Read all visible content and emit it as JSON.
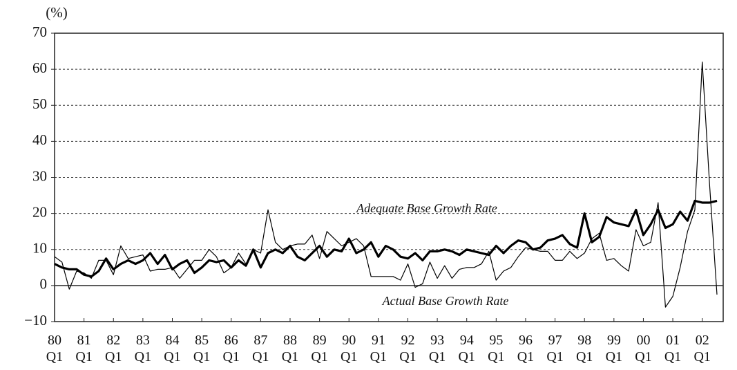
{
  "chart_data": {
    "type": "line",
    "unit_label": "(%)",
    "annotations": [
      "Adequate Base Growth Rate",
      "Actual Base Growth Rate"
    ],
    "categories": [
      "80 Q1",
      null,
      null,
      null,
      "81 Q1",
      null,
      null,
      null,
      "82 Q1",
      null,
      null,
      null,
      "83 Q1",
      null,
      null,
      null,
      "84 Q1",
      null,
      null,
      null,
      "85 Q1",
      null,
      null,
      null,
      "86 Q1",
      null,
      null,
      null,
      "87 Q1",
      null,
      null,
      null,
      "88 Q1",
      null,
      null,
      null,
      "89 Q1",
      null,
      null,
      null,
      "90 Q1",
      null,
      null,
      null,
      "91 Q1",
      null,
      null,
      null,
      "92 Q1",
      null,
      null,
      null,
      "93 Q1",
      null,
      null,
      null,
      "94 Q1",
      null,
      null,
      null,
      "95 Q1",
      null,
      null,
      null,
      "96 Q1",
      null,
      null,
      null,
      "97 Q1",
      null,
      null,
      null,
      "98 Q1",
      null,
      null,
      null,
      "99 Q1",
      null,
      null,
      null,
      "00 Q1",
      null,
      null,
      null,
      "01 Q1",
      null,
      null,
      null,
      "02 Q1",
      null,
      null
    ],
    "series": [
      {
        "name": "Adequate Base Growth Rate",
        "color": "#000000",
        "values": [
          6,
          5,
          4.5,
          4.5,
          3,
          2.5,
          4,
          7.5,
          4.5,
          6,
          7,
          6,
          7,
          9,
          6,
          8.5,
          4.5,
          6,
          7,
          3.5,
          5,
          7,
          6.5,
          7,
          5,
          7,
          5.5,
          10,
          5,
          9,
          10,
          9,
          11,
          8,
          7,
          9,
          11,
          8,
          10,
          9.5,
          13,
          9,
          10,
          12,
          8,
          11,
          10,
          8,
          7.5,
          9,
          7,
          9.5,
          9.5,
          10,
          9.5,
          8.5,
          10,
          9.5,
          9,
          8.5,
          11,
          9,
          11,
          12.5,
          12,
          10,
          10.5,
          12.5,
          13,
          14,
          11.5,
          10.5,
          20,
          12,
          13.5,
          19,
          17.5,
          17,
          16.5,
          21,
          14,
          17,
          21,
          16,
          17,
          20.5,
          18,
          23.5,
          23,
          23,
          23.5
        ]
      },
      {
        "name": "Actual Base Growth Rate",
        "color": "#000000",
        "values": [
          8,
          6.5,
          -1,
          4,
          3.5,
          2,
          7,
          7,
          3,
          11,
          7.5,
          8,
          8.5,
          4,
          4.5,
          4.5,
          5,
          2,
          4.5,
          7,
          7,
          10,
          8,
          3.5,
          5,
          9,
          6,
          10,
          9,
          21,
          12,
          10,
          11,
          11.5,
          11.5,
          14,
          7.5,
          15,
          13,
          11,
          12,
          13,
          11,
          2.5,
          2.5,
          2.5,
          2.5,
          1.5,
          6,
          -0.5,
          0.5,
          6.5,
          2,
          5.5,
          2,
          4.5,
          5,
          5,
          6,
          9.5,
          1.5,
          4,
          5,
          8,
          10.5,
          10,
          9.5,
          9.5,
          7,
          7,
          9.5,
          7.5,
          9,
          13,
          14.5,
          7,
          7.5,
          5.5,
          4,
          15.5,
          11,
          12,
          23,
          -6,
          -3,
          5,
          15,
          21,
          62,
          28,
          -2.5
        ]
      }
    ],
    "ylim": [
      -10,
      70
    ],
    "yticks": [
      {
        "value": -10,
        "label": "−10"
      },
      0,
      10,
      20,
      30,
      40,
      50,
      60,
      70
    ],
    "grid": true
  }
}
